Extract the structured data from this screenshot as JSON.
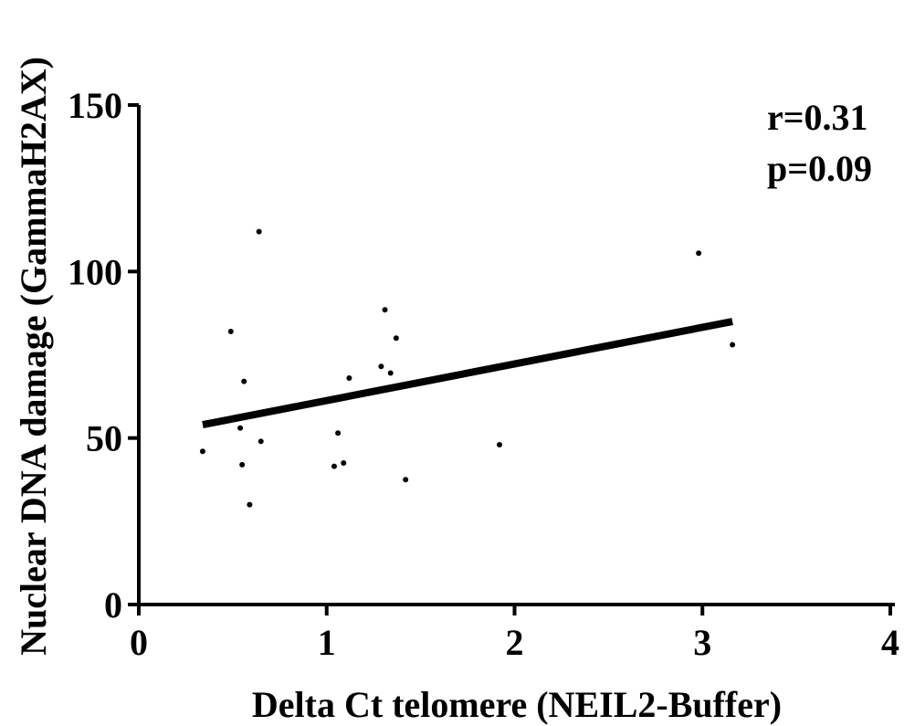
{
  "chart_data": {
    "type": "scatter",
    "xlabel": "Delta Ct telomere (NEIL2-Buffer)",
    "ylabel": "Nuclear DNA damage (GammaH2AX)",
    "xlim": [
      0,
      4
    ],
    "ylim": [
      0,
      150
    ],
    "xticks": [
      "0",
      "1",
      "2",
      "3",
      "4"
    ],
    "yticks": [
      "0",
      "50",
      "100",
      "150"
    ],
    "points": [
      {
        "x": 0.34,
        "y": 46
      },
      {
        "x": 0.49,
        "y": 82
      },
      {
        "x": 0.54,
        "y": 53
      },
      {
        "x": 0.55,
        "y": 42
      },
      {
        "x": 0.56,
        "y": 67
      },
      {
        "x": 0.59,
        "y": 30
      },
      {
        "x": 0.64,
        "y": 112
      },
      {
        "x": 0.65,
        "y": 49
      },
      {
        "x": 1.04,
        "y": 41.5
      },
      {
        "x": 1.06,
        "y": 51.5
      },
      {
        "x": 1.09,
        "y": 42.5
      },
      {
        "x": 1.12,
        "y": 68
      },
      {
        "x": 1.29,
        "y": 71.5
      },
      {
        "x": 1.31,
        "y": 88.5
      },
      {
        "x": 1.34,
        "y": 69.5
      },
      {
        "x": 1.37,
        "y": 80
      },
      {
        "x": 1.42,
        "y": 37.5
      },
      {
        "x": 1.92,
        "y": 48
      },
      {
        "x": 2.98,
        "y": 105.5
      },
      {
        "x": 3.16,
        "y": 78
      }
    ],
    "trendline": {
      "x": [
        0.34,
        3.16
      ],
      "y": [
        54,
        85
      ]
    },
    "annotations": [
      "r=0.31",
      "p=0.09"
    ],
    "grid": false,
    "legend": "none"
  }
}
